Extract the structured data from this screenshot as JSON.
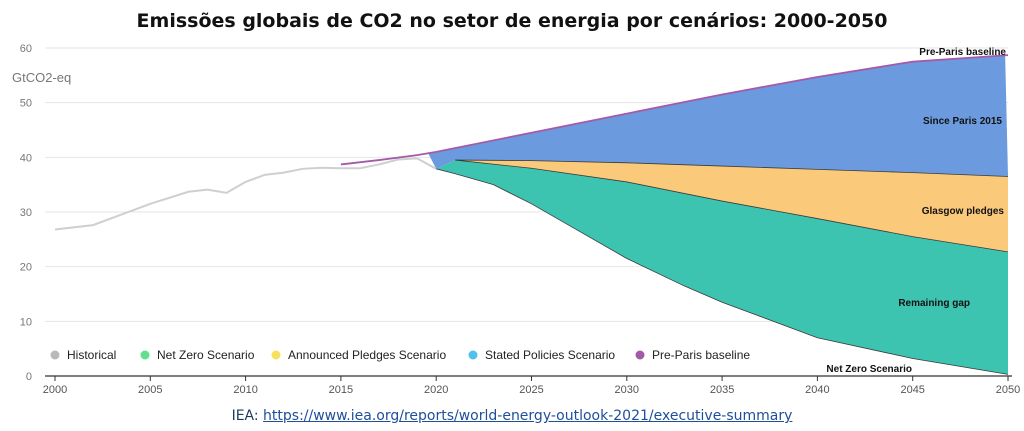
{
  "chart_data": {
    "type": "area",
    "title": "Emissões globais de CO2 no setor de energia por cenários: 2000-2050",
    "ylabel": "GtCO2-eq",
    "xlabel": "",
    "xlim": [
      2000,
      2050
    ],
    "ylim": [
      0,
      60
    ],
    "x_ticks": [
      "2000",
      "2005",
      "2010",
      "2015",
      "2020",
      "2025",
      "2030",
      "2035",
      "2040",
      "2045",
      "2050"
    ],
    "y_ticks": [
      "0",
      "10",
      "20",
      "30",
      "40",
      "50",
      "60"
    ],
    "grid": "horizontal",
    "legend_position": "bottom-left",
    "legend": [
      {
        "label": "Historical",
        "color": "#b9b9b9"
      },
      {
        "label": "Net Zero Scenario",
        "color": "#5fe08a"
      },
      {
        "label": "Announced Pledges Scenario",
        "color": "#f7e15a"
      },
      {
        "label": "Stated Policies Scenario",
        "color": "#4fc1ea"
      },
      {
        "label": "Pre-Paris baseline",
        "color": "#a45aa8"
      }
    ],
    "series": [
      {
        "name": "Historical",
        "color": "#cfcfcf",
        "x": [
          2000,
          2002,
          2004,
          2005,
          2007,
          2008,
          2009,
          2010,
          2011,
          2012,
          2013,
          2014,
          2015,
          2016,
          2017,
          2018,
          2019,
          2020
        ],
        "y": [
          26.8,
          27.6,
          30.2,
          31.5,
          33.7,
          34.1,
          33.5,
          35.5,
          36.8,
          37.2,
          37.9,
          38.1,
          38.0,
          38.0,
          38.7,
          39.6,
          39.8,
          37.9
        ]
      },
      {
        "name": "Pre-Paris baseline",
        "color": "#a45aa8",
        "x": [
          2015,
          2017,
          2019,
          2020,
          2025,
          2030,
          2035,
          2040,
          2045,
          2050
        ],
        "y": [
          38.7,
          39.5,
          40.4,
          41.0,
          44.5,
          48.0,
          51.5,
          54.7,
          57.5,
          58.7
        ]
      },
      {
        "name": "Stated Policies Scenario",
        "x": [
          2021,
          2025,
          2030,
          2035,
          2040,
          2045,
          2050
        ],
        "y": [
          39.5,
          39.4,
          39.0,
          38.4,
          37.8,
          37.2,
          36.5
        ]
      },
      {
        "name": "Announced Pledges Scenario",
        "x": [
          2021,
          2025,
          2030,
          2035,
          2040,
          2045,
          2050
        ],
        "y": [
          39.5,
          38.0,
          35.5,
          32.0,
          28.8,
          25.5,
          22.7
        ]
      },
      {
        "name": "Net Zero Scenario",
        "x": [
          2020,
          2021,
          2023,
          2025,
          2027,
          2030,
          2033,
          2035,
          2040,
          2045,
          2050
        ],
        "y": [
          37.9,
          37.0,
          35.0,
          31.5,
          27.5,
          21.5,
          16.5,
          13.5,
          7.0,
          3.2,
          0.3
        ]
      }
    ],
    "bands": [
      {
        "label": "Since Paris 2015",
        "color": "#6b9adf",
        "upper": "Pre-Paris baseline",
        "lower": "Stated Policies Scenario"
      },
      {
        "label": "Glasgow pledges",
        "color": "#fbc97a",
        "upper": "Stated Policies Scenario",
        "lower": "Announced Pledges Scenario"
      },
      {
        "label": "Remaining gap",
        "color": "#3cc4b0",
        "upper": "Announced Pledges Scenario",
        "lower": "Net Zero Scenario"
      }
    ],
    "annotations": [
      "Pre-Paris baseline",
      "Since Paris 2015",
      "Glasgow pledges",
      "Remaining gap",
      "Net Zero Scenario"
    ]
  },
  "source": {
    "prefix": "IEA:",
    "link_text": "https://www.iea.org/reports/world-energy-outlook-2021/executive-summary"
  }
}
